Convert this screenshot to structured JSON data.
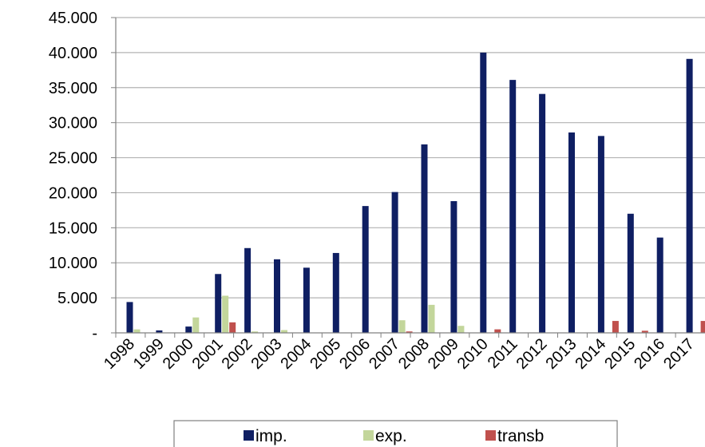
{
  "chart_data": {
    "type": "bar",
    "categories": [
      "1998",
      "1999",
      "2000",
      "2001",
      "2002",
      "2003",
      "2004",
      "2005",
      "2006",
      "2007",
      "2008",
      "2009",
      "2010",
      "2011",
      "2012",
      "2013",
      "2014",
      "2015",
      "2016",
      "2017"
    ],
    "series": [
      {
        "name": "imp.",
        "color": "#0f1f63",
        "values": [
          4400,
          350,
          900,
          8400,
          12100,
          10500,
          9300,
          11400,
          18100,
          20100,
          26900,
          18800,
          40000,
          36100,
          34100,
          28600,
          28100,
          17000,
          13600,
          39100
        ]
      },
      {
        "name": "exp.",
        "color": "#c3d69b",
        "values": [
          500,
          0,
          2200,
          5300,
          200,
          400,
          0,
          0,
          0,
          1800,
          4000,
          1000,
          0,
          0,
          0,
          0,
          0,
          0,
          0,
          0
        ]
      },
      {
        "name": "transb",
        "color": "#c0504d",
        "values": [
          0,
          0,
          0,
          1500,
          0,
          0,
          0,
          0,
          0,
          200,
          0,
          0,
          500,
          0,
          0,
          0,
          1700,
          300,
          0,
          1700
        ]
      }
    ],
    "y_ticks": [
      "-",
      "5.000",
      "10.000",
      "15.000",
      "20.000",
      "25.000",
      "30.000",
      "35.000",
      "40.000",
      "45.000"
    ],
    "ylim": [
      0,
      45000
    ],
    "grid": true,
    "legend_position": "bottom"
  }
}
